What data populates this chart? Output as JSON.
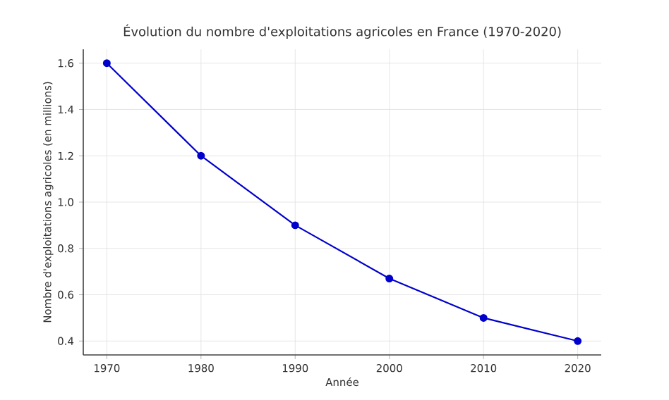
{
  "chart_data": {
    "type": "line",
    "title": "Évolution du nombre d'exploitations agricoles en France (1970-2020)",
    "xlabel": "Année",
    "ylabel": "Nombre d'exploitations agricoles (en millions)",
    "x": [
      1970,
      1980,
      1990,
      2000,
      2010,
      2020
    ],
    "series": [
      {
        "color": "#0000cc",
        "values": [
          1.6,
          1.2,
          0.9,
          0.67,
          0.5,
          0.4
        ]
      }
    ],
    "xlim": [
      1967.5,
      2022.5
    ],
    "ylim": [
      0.34,
      1.66
    ],
    "xticks": [
      1970,
      1980,
      1990,
      2000,
      2010,
      2020
    ],
    "yticks": [
      {
        "value": 0.4,
        "label": "0.4"
      },
      {
        "value": 0.6,
        "label": "0.6"
      },
      {
        "value": 0.8,
        "label": "0.8"
      },
      {
        "value": 1.0,
        "label": "1.0"
      },
      {
        "value": 1.2,
        "label": "1.2"
      },
      {
        "value": 1.4,
        "label": "1.4"
      },
      {
        "value": 1.6,
        "label": "1.6"
      }
    ],
    "grid": true,
    "marker": "circle",
    "line_style": "solid"
  }
}
